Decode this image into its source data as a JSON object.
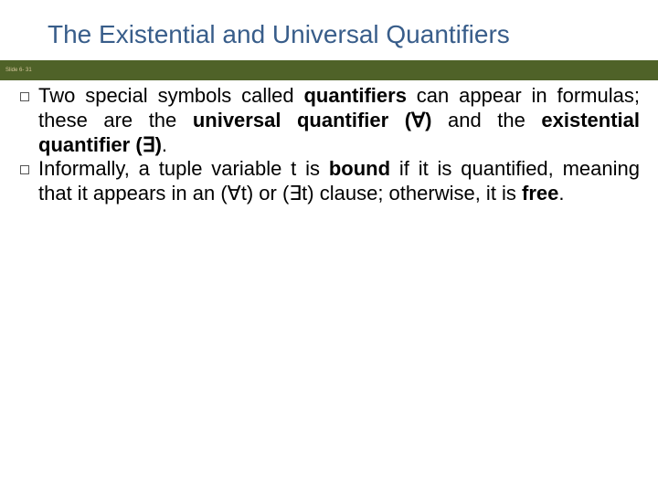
{
  "title": "The Existential and Universal Quantifiers",
  "badge": "Slide 6-\n31",
  "colors": {
    "title_color": "#385d8a",
    "badge_bg": "#4f6228",
    "badge_text": "#d6c79b",
    "body_text": "#000000",
    "background": "#ffffff"
  },
  "typography": {
    "title_fontsize": 28,
    "body_fontsize": 22,
    "badge_fontsize": 6,
    "font_family": "Arial"
  },
  "bullets": [
    {
      "runs": [
        {
          "t": "Two special symbols called ",
          "b": false
        },
        {
          "t": "quantifiers",
          "b": true
        },
        {
          "t": " can appear in formulas; these are the ",
          "b": false
        },
        {
          "t": "universal quantifier (∀)",
          "b": true
        },
        {
          "t": " and the ",
          "b": false
        },
        {
          "t": "existential quantifier (∃)",
          "b": true
        },
        {
          "t": ".",
          "b": false
        }
      ]
    },
    {
      "runs": [
        {
          "t": "Informally, a tuple variable t is ",
          "b": false
        },
        {
          "t": "bound",
          "b": true
        },
        {
          "t": " if it is quantified, meaning that it appears in an (∀t) or (∃t) clause; otherwise, it is ",
          "b": false
        },
        {
          "t": "free",
          "b": true
        },
        {
          "t": ".",
          "b": false
        }
      ]
    }
  ]
}
